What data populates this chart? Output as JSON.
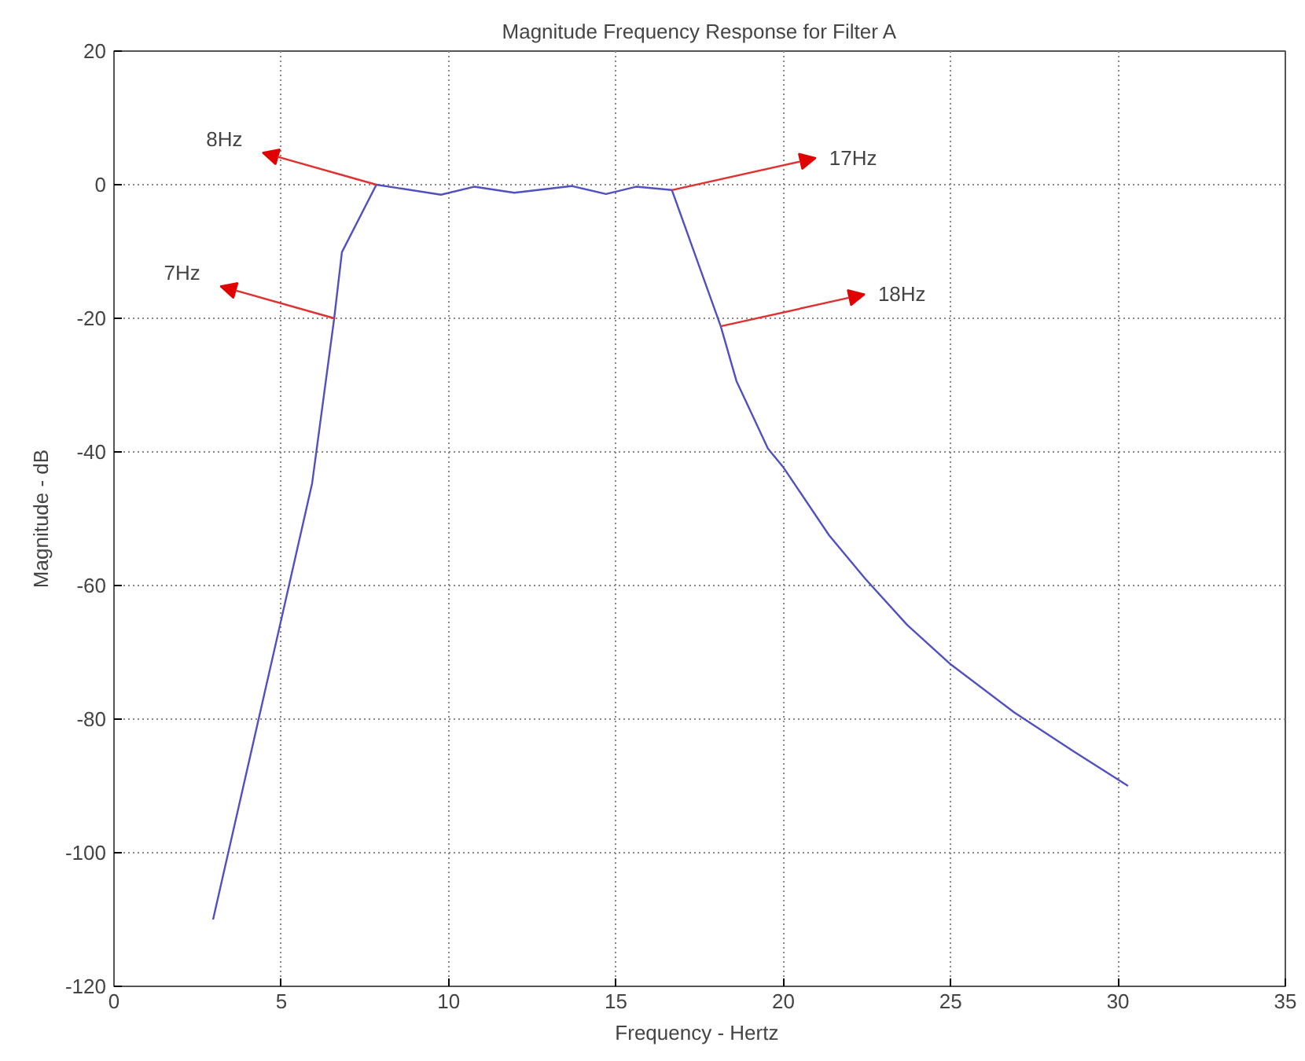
{
  "chart_data": {
    "type": "line",
    "title": "Magnitude Frequency Response for Filter A",
    "xlabel": "Frequency -  Hertz",
    "ylabel": "Magnitude - dB",
    "x": [
      2.96,
      4.93,
      5.92,
      6.58,
      6.81,
      7.84,
      9.77,
      10.76,
      11.96,
      13.67,
      14.7,
      15.6,
      16.67,
      18.13,
      18.6,
      19.54,
      20.0,
      21.37,
      22.45,
      23.7,
      25.0,
      26.9,
      28.7,
      30.3
    ],
    "series": [
      {
        "color": "#5050c0",
        "values": [
          -110,
          -66.6,
          -44.7,
          -20,
          -10.1,
          0,
          -1.5,
          -0.3,
          -1.2,
          -0.2,
          -1.4,
          -0.3,
          -0.8,
          -21.2,
          -29.4,
          -39.5,
          -42.3,
          -52.5,
          -59,
          -65.9,
          -71.8,
          -79,
          -84.9,
          -90
        ]
      }
    ],
    "xlim": [
      0,
      35
    ],
    "ylim": [
      -120,
      20
    ],
    "xticks": [
      0,
      5,
      10,
      15,
      20,
      25,
      30,
      35
    ],
    "yticks": [
      -120,
      -100,
      -80,
      -60,
      -40,
      -20,
      0,
      20
    ],
    "grid": true,
    "line_style": "solid",
    "annotations": [
      {
        "text": "8Hz",
        "x": 7.84,
        "y": 0
      },
      {
        "text": "7Hz",
        "x": 6.58,
        "y": -20
      },
      {
        "text": "17Hz",
        "x": 16.67,
        "y": -0.8
      },
      {
        "text": "18Hz",
        "x": 18.13,
        "y": -21.2
      }
    ]
  }
}
